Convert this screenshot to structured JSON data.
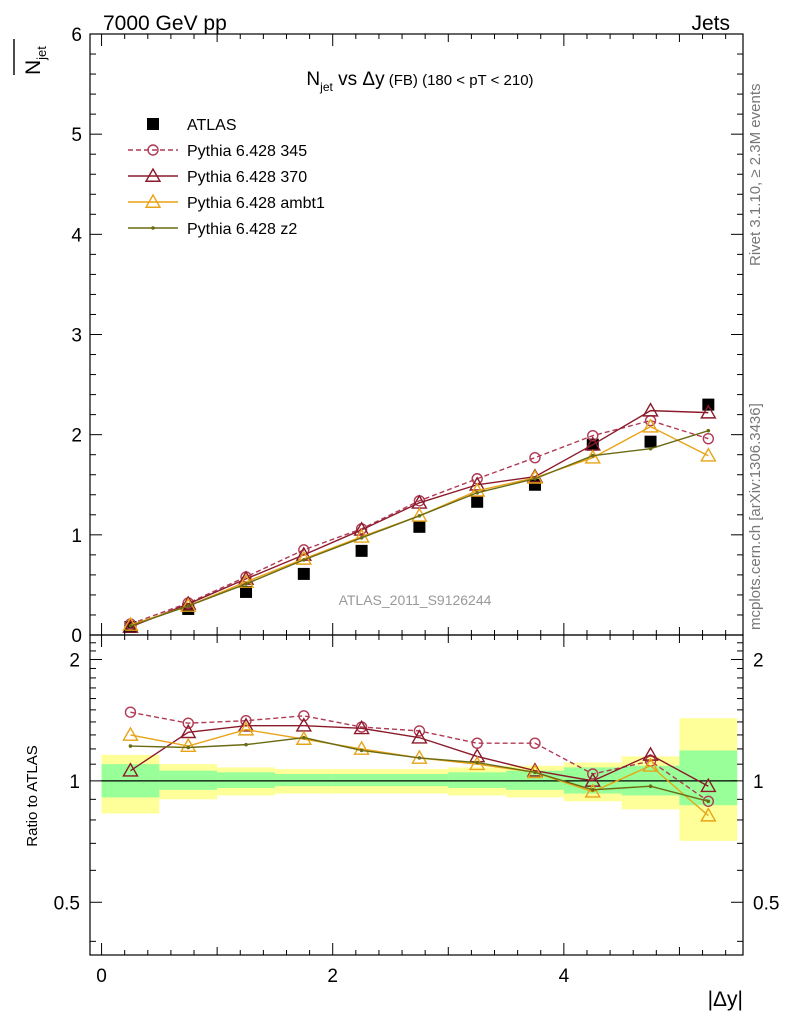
{
  "header": {
    "left_label": "7000 GeV pp",
    "right_label": "Jets"
  },
  "side_labels": {
    "rivet": "Rivet 3.1.10, ≥ 2.3M events",
    "mcplots": "mcplots.cern.ch [arXiv:1306.3436]"
  },
  "analysis_label": "ATLAS_2011_S9126244",
  "chart_data": [
    {
      "type": "scatter",
      "panel": "main",
      "title_main": "N",
      "title_sub": "jet",
      "title_mid": " vs Δy",
      "title_small": " (FB)",
      "title_tail": " (180 < pT < 210)",
      "ylabel_main": "N",
      "ylabel_sub": "jet",
      "ylim": [
        0,
        6
      ],
      "xlim": [
        -0.1,
        5.55
      ],
      "yticks": [
        "0",
        "1",
        "2",
        "3",
        "4",
        "5",
        "6"
      ],
      "xticks": [
        "0",
        "2",
        "4"
      ],
      "x": [
        0.25,
        0.75,
        1.25,
        1.75,
        2.25,
        2.75,
        3.25,
        3.75,
        4.25,
        4.75,
        5.25
      ],
      "series": [
        {
          "name": "ATLAS",
          "color": "#000000",
          "marker": "square",
          "values": [
            0.08,
            0.26,
            0.43,
            0.61,
            0.84,
            1.08,
            1.33,
            1.5,
            1.9,
            1.93,
            2.3
          ]
        },
        {
          "name": "Pythia 6.428 345",
          "color": "#b03a55",
          "marker": "circle",
          "dash": true,
          "values": [
            0.11,
            0.32,
            0.58,
            0.85,
            1.06,
            1.34,
            1.56,
            1.77,
            1.99,
            2.14,
            1.96
          ]
        },
        {
          "name": "Pythia 6.428 370",
          "color": "#8b1a2b",
          "marker": "triangle",
          "values": [
            0.08,
            0.31,
            0.56,
            0.8,
            1.05,
            1.32,
            1.5,
            1.58,
            1.9,
            2.24,
            2.22
          ]
        },
        {
          "name": "Pythia 6.428 ambt1",
          "color": "#e8a317",
          "marker": "triangle",
          "values": [
            0.1,
            0.29,
            0.53,
            0.76,
            0.98,
            1.19,
            1.44,
            1.57,
            1.77,
            2.08,
            1.79
          ]
        },
        {
          "name": "Pythia 6.428 z2",
          "color": "#6b6b14",
          "marker": "dot",
          "values": [
            0.09,
            0.29,
            0.51,
            0.75,
            0.97,
            1.19,
            1.42,
            1.56,
            1.79,
            1.86,
            2.04
          ]
        }
      ]
    },
    {
      "type": "scatter",
      "panel": "ratio",
      "ylabel": "Ratio to ATLAS",
      "xlabel": "|Δy|",
      "ylim": [
        0.37,
        2.3
      ],
      "yticks": [
        0.5,
        1,
        2
      ],
      "ytick_labels": [
        "0.5",
        "1",
        "2"
      ],
      "reference": 1,
      "band_edges": [
        0,
        0.5,
        1.0,
        1.5,
        2.0,
        2.5,
        3.0,
        3.5,
        4.0,
        4.5,
        5.0,
        5.5
      ],
      "band_inner": [
        [
          0.91,
          1.1
        ],
        [
          0.95,
          1.06
        ],
        [
          0.96,
          1.05
        ],
        [
          0.97,
          1.04
        ],
        [
          0.97,
          1.04
        ],
        [
          0.97,
          1.04
        ],
        [
          0.96,
          1.05
        ],
        [
          0.95,
          1.06
        ],
        [
          0.93,
          1.08
        ],
        [
          0.92,
          1.09
        ],
        [
          0.87,
          1.19
        ]
      ],
      "band_outer": [
        [
          0.83,
          1.16
        ],
        [
          0.9,
          1.1
        ],
        [
          0.92,
          1.08
        ],
        [
          0.93,
          1.07
        ],
        [
          0.93,
          1.07
        ],
        [
          0.93,
          1.07
        ],
        [
          0.92,
          1.08
        ],
        [
          0.91,
          1.09
        ],
        [
          0.89,
          1.11
        ],
        [
          0.85,
          1.15
        ],
        [
          0.71,
          1.43
        ]
      ],
      "x": [
        0.25,
        0.75,
        1.25,
        1.75,
        2.25,
        2.75,
        3.25,
        3.75,
        4.25,
        4.75,
        5.25
      ],
      "series": [
        {
          "name": "Pythia 6.428 345",
          "color": "#b03a55",
          "marker": "circle",
          "dash": true,
          "values": [
            1.48,
            1.39,
            1.41,
            1.45,
            1.36,
            1.33,
            1.24,
            1.24,
            1.04,
            1.12,
            0.89
          ]
        },
        {
          "name": "Pythia 6.428 370",
          "color": "#8b1a2b",
          "marker": "triangle",
          "values": [
            1.06,
            1.32,
            1.37,
            1.37,
            1.35,
            1.28,
            1.15,
            1.06,
            1.0,
            1.16,
            0.97
          ]
        },
        {
          "name": "Pythia 6.428 ambt1",
          "color": "#e8a317",
          "marker": "triangle",
          "values": [
            1.3,
            1.22,
            1.34,
            1.27,
            1.2,
            1.14,
            1.1,
            1.05,
            0.94,
            1.09,
            0.82
          ]
        },
        {
          "name": "Pythia 6.428 z2",
          "color": "#6b6b14",
          "marker": "dot",
          "values": [
            1.22,
            1.21,
            1.23,
            1.28,
            1.19,
            1.14,
            1.11,
            1.05,
            0.95,
            0.97,
            0.89
          ]
        }
      ]
    }
  ]
}
